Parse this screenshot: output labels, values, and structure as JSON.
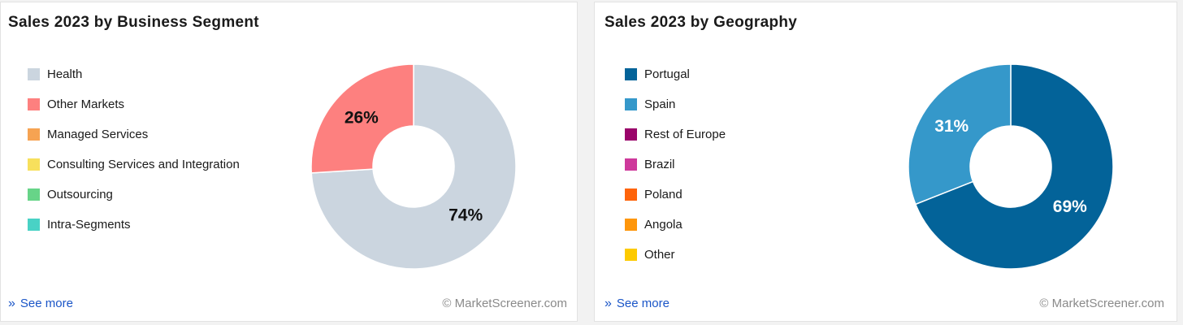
{
  "chart_data": [
    {
      "type": "pie",
      "title": "Sales 2023 by Business Segment",
      "categories": [
        "Health",
        "Other Markets",
        "Managed Services",
        "Consulting Services and Integration",
        "Outsourcing",
        "Intra-Segments"
      ],
      "colors": [
        "#cbd5df",
        "#fd807f",
        "#f6a352",
        "#f7e05c",
        "#67d488",
        "#49d2c5"
      ],
      "values": [
        74,
        26,
        0,
        0,
        0,
        0
      ],
      "labels": [
        "74%",
        "26%",
        "",
        "",
        "",
        ""
      ],
      "label_colors": [
        "#111111",
        "#111111",
        "#111111",
        "#111111",
        "#111111",
        "#111111"
      ],
      "legend": "left",
      "see_more": "See more",
      "copyright": "© MarketScreener.com"
    },
    {
      "type": "pie",
      "title": "Sales 2023 by Geography",
      "categories": [
        "Portugal",
        "Spain",
        "Rest of Europe",
        "Brazil",
        "Poland",
        "Angola",
        "Other"
      ],
      "colors": [
        "#036399",
        "#3598ca",
        "#9a046a",
        "#ce399b",
        "#fe640b",
        "#fe960b",
        "#fdca00"
      ],
      "values": [
        69,
        31,
        0,
        0,
        0,
        0,
        0
      ],
      "labels": [
        "69%",
        "31%",
        "",
        "",
        "",
        "",
        ""
      ],
      "label_colors": [
        "#ffffff",
        "#ffffff",
        "#ffffff",
        "#ffffff",
        "#ffffff",
        "#ffffff",
        "#ffffff"
      ],
      "legend": "left",
      "see_more": "See more",
      "copyright": "© MarketScreener.com"
    }
  ]
}
